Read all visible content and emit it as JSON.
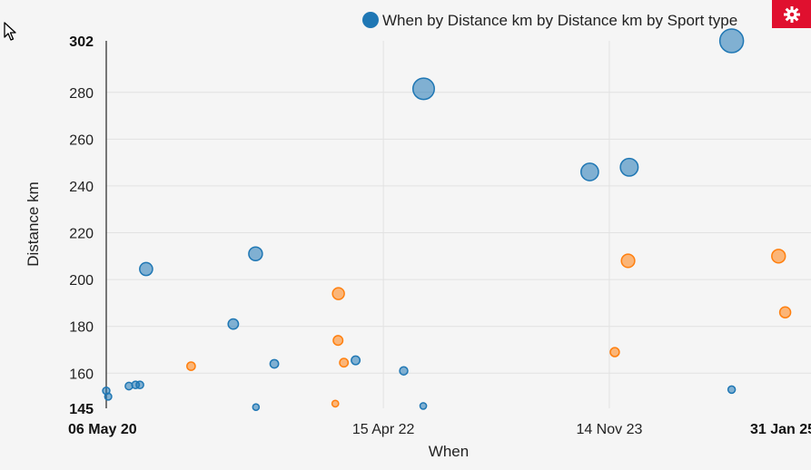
{
  "chart_data": {
    "type": "scatter",
    "title": "",
    "xlabel": "When",
    "ylabel": "Distance km",
    "x_scale": "time",
    "xlim": [
      "2020-05-06",
      "2025-01-31"
    ],
    "ylim": [
      145,
      302
    ],
    "x_ticks": [
      {
        "date": "2020-05-06",
        "label": "06 May 20",
        "bold": true
      },
      {
        "date": "2022-04-15",
        "label": "15 Apr 22",
        "bold": false
      },
      {
        "date": "2023-11-14",
        "label": "14 Nov 23",
        "bold": false
      },
      {
        "date": "2025-01-31",
        "label": "31 Jan 25",
        "bold": true
      }
    ],
    "y_ticks": [
      {
        "value": 145,
        "label": "145",
        "bold": true
      },
      {
        "value": 160,
        "label": "160",
        "bold": false
      },
      {
        "value": 180,
        "label": "180",
        "bold": false
      },
      {
        "value": 200,
        "label": "200",
        "bold": false
      },
      {
        "value": 220,
        "label": "220",
        "bold": false
      },
      {
        "value": 240,
        "label": "240",
        "bold": false
      },
      {
        "value": 260,
        "label": "260",
        "bold": false
      },
      {
        "value": 280,
        "label": "280",
        "bold": false
      },
      {
        "value": 302,
        "label": "302",
        "bold": true
      }
    ],
    "grid": true,
    "legend": {
      "position": "top-right",
      "label": "When by Distance km by Distance km by Sport type"
    },
    "size_encoding": "Distance km",
    "series": [
      {
        "color": "#1f77b4",
        "points": [
          {
            "x": "2020-05-06",
            "y": 152.5
          },
          {
            "x": "2020-05-11",
            "y": 150
          },
          {
            "x": "2020-07-03",
            "y": 154.5
          },
          {
            "x": "2020-07-20",
            "y": 155
          },
          {
            "x": "2020-07-31",
            "y": 155
          },
          {
            "x": "2020-08-16",
            "y": 204.5
          },
          {
            "x": "2021-03-27",
            "y": 181
          },
          {
            "x": "2021-05-23",
            "y": 211
          },
          {
            "x": "2021-05-24",
            "y": 145.5
          },
          {
            "x": "2021-07-10",
            "y": 164
          },
          {
            "x": "2022-02-03",
            "y": 165.5
          },
          {
            "x": "2022-06-06",
            "y": 161
          },
          {
            "x": "2022-07-26",
            "y": 146
          },
          {
            "x": "2022-07-27",
            "y": 281.5
          },
          {
            "x": "2023-09-25",
            "y": 246
          },
          {
            "x": "2024-01-04",
            "y": 248
          },
          {
            "x": "2024-09-22",
            "y": 153
          },
          {
            "x": "2024-09-22",
            "y": 302
          }
        ]
      },
      {
        "color": "#ff7f0e",
        "points": [
          {
            "x": "2020-12-09",
            "y": 163
          },
          {
            "x": "2021-12-13",
            "y": 147
          },
          {
            "x": "2021-12-20",
            "y": 174
          },
          {
            "x": "2021-12-21",
            "y": 194
          },
          {
            "x": "2022-01-04",
            "y": 164.5
          },
          {
            "x": "2023-11-28",
            "y": 169
          },
          {
            "x": "2024-01-01",
            "y": 208
          },
          {
            "x": "2025-01-20",
            "y": 210
          },
          {
            "x": "2025-02-06",
            "y": 186
          }
        ]
      }
    ]
  },
  "ui": {
    "settings_icon": "gear-icon",
    "cursor_icon": "mouse-pointer-icon",
    "accent_color": "#e0102f"
  }
}
